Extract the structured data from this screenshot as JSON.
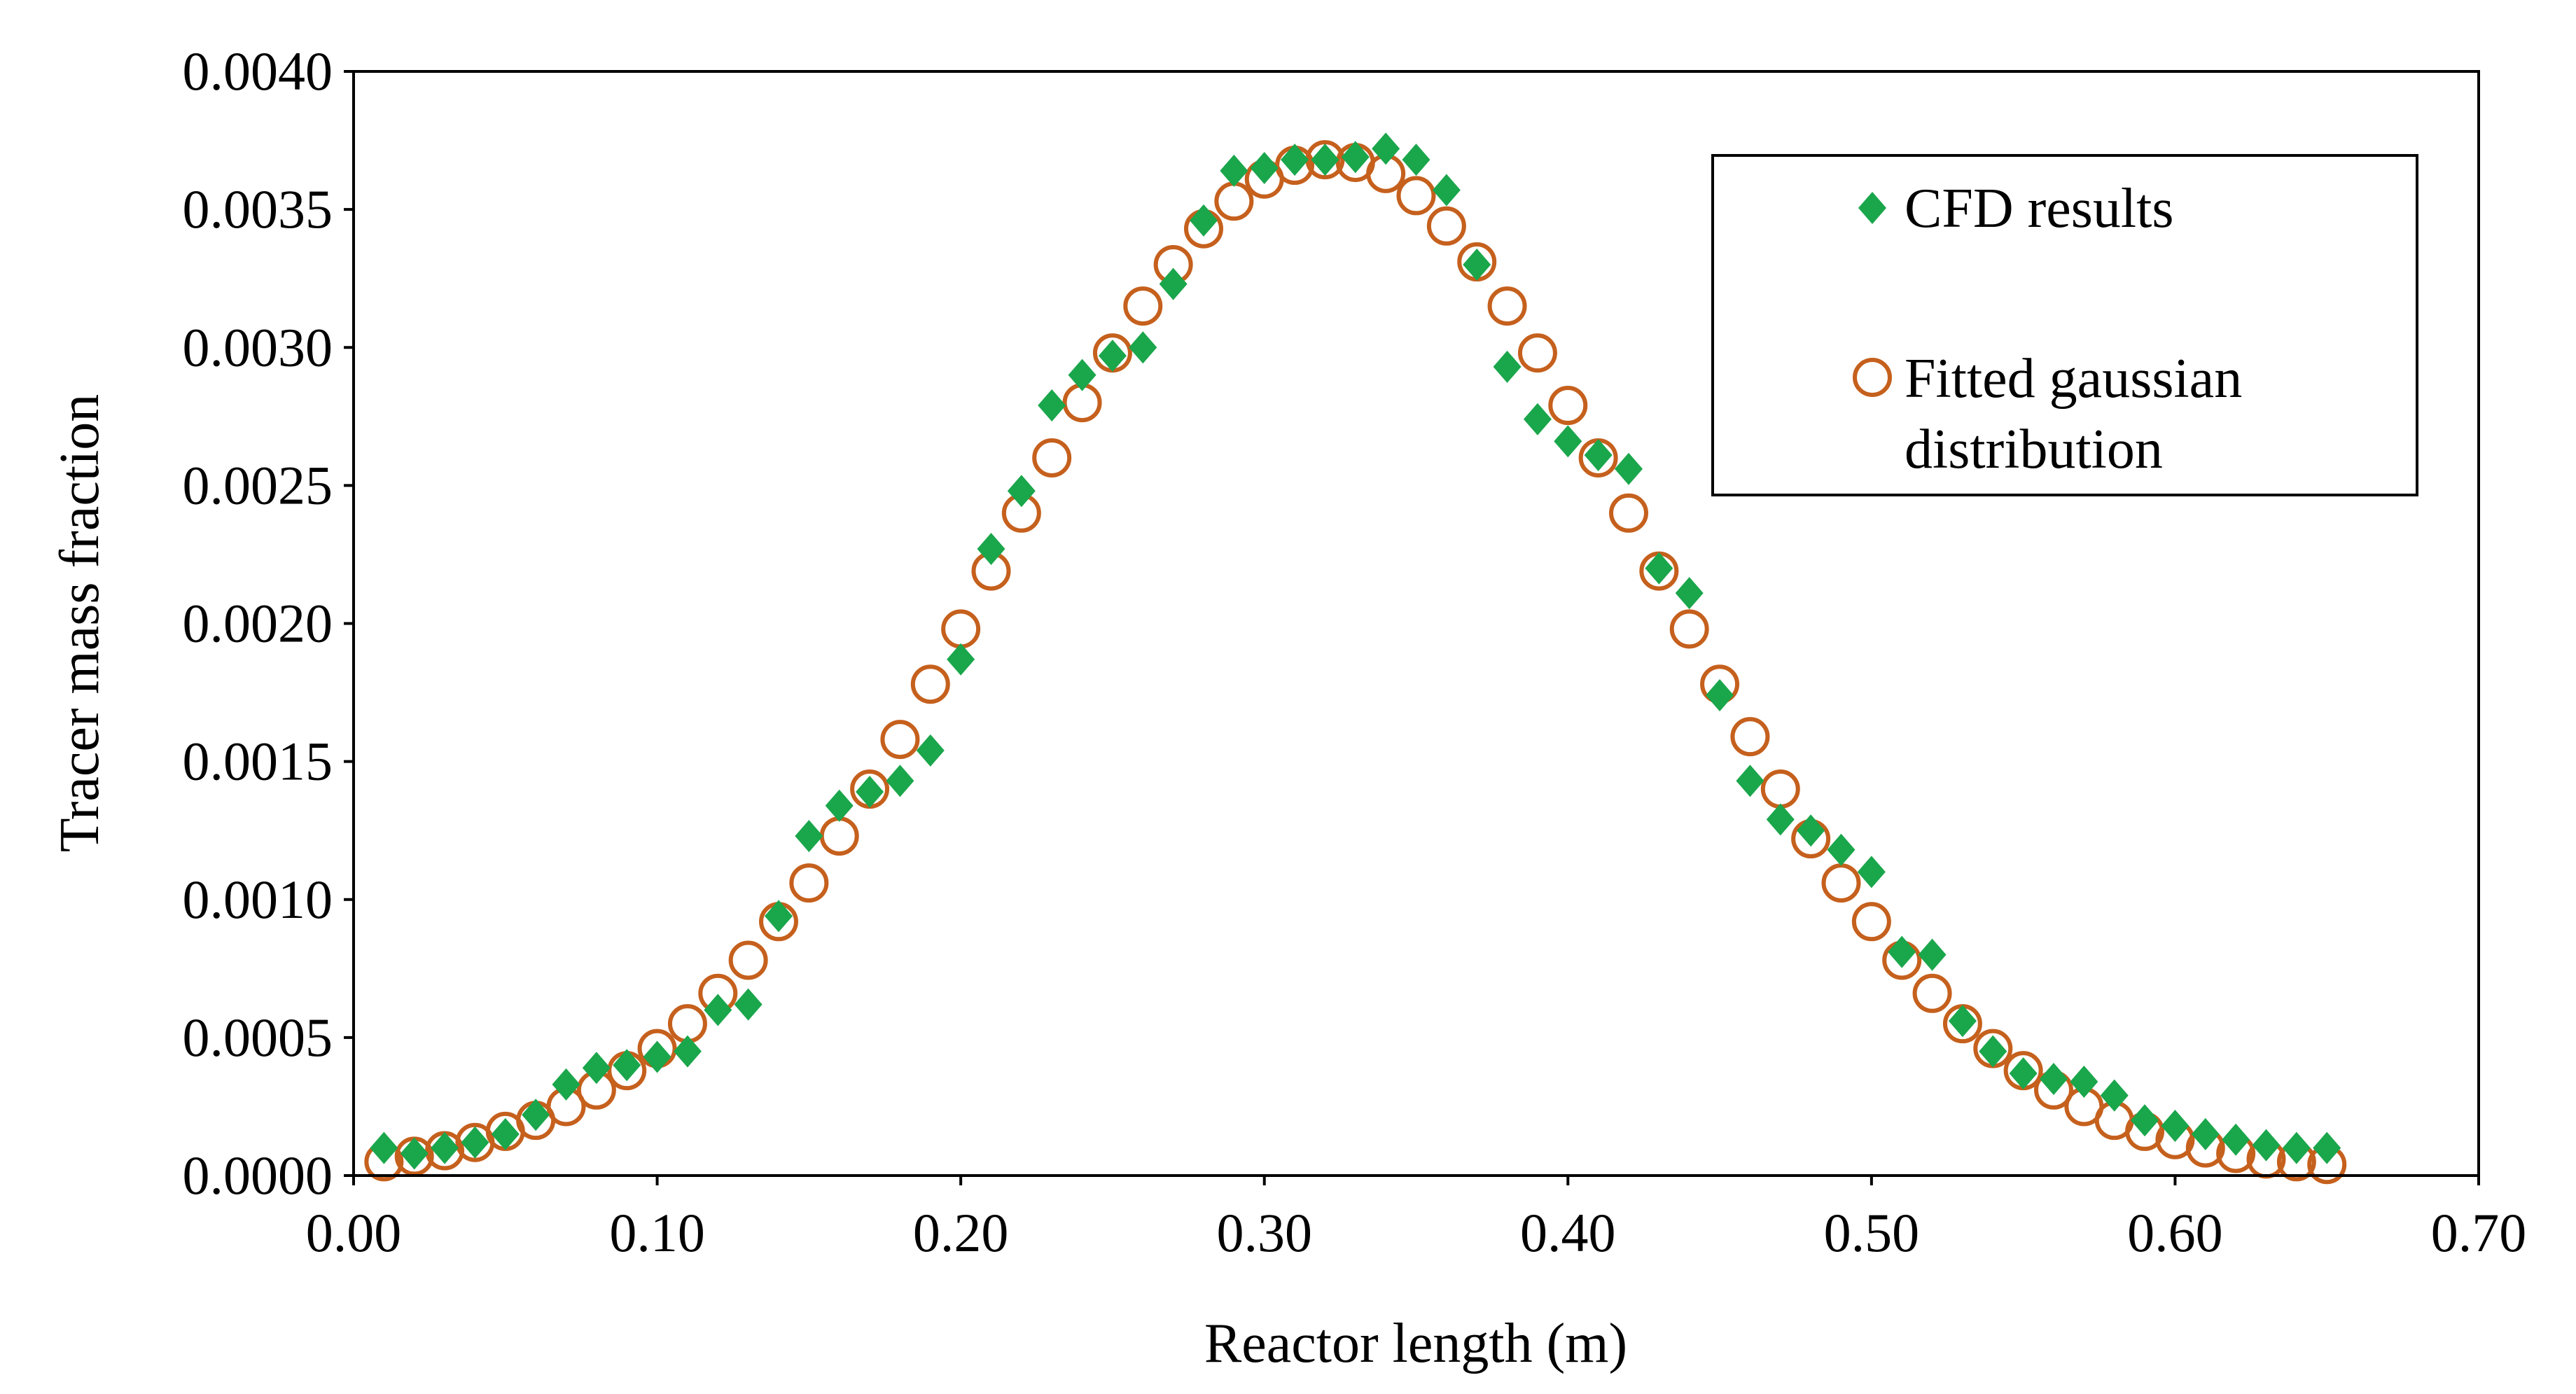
{
  "chart_data": {
    "type": "scatter",
    "title": "",
    "xlabel": "Reactor length (m)",
    "ylabel": "Tracer mass fraction",
    "xlim": [
      0.0,
      0.7
    ],
    "ylim": [
      0.0,
      0.004
    ],
    "x_ticks": [
      "0.00",
      "0.10",
      "0.20",
      "0.30",
      "0.40",
      "0.50",
      "0.60",
      "0.70"
    ],
    "y_ticks": [
      "0.0000",
      "0.0005",
      "0.0010",
      "0.0015",
      "0.0020",
      "0.0025",
      "0.0030",
      "0.0035",
      "0.0040"
    ],
    "grid": false,
    "legend_position": "top-right",
    "series": [
      {
        "name": "CFD results",
        "marker": "diamond",
        "color": "#1aa64b",
        "points": [
          [
            0.01,
            0.0001
          ],
          [
            0.02,
            8e-05
          ],
          [
            0.03,
            0.0001
          ],
          [
            0.04,
            0.00012
          ],
          [
            0.05,
            0.00015
          ],
          [
            0.06,
            0.00022
          ],
          [
            0.07,
            0.00033
          ],
          [
            0.08,
            0.00039
          ],
          [
            0.09,
            0.0004
          ],
          [
            0.1,
            0.00043
          ],
          [
            0.11,
            0.00045
          ],
          [
            0.12,
            0.0006
          ],
          [
            0.13,
            0.00062
          ],
          [
            0.14,
            0.00094
          ],
          [
            0.15,
            0.00123
          ],
          [
            0.16,
            0.00134
          ],
          [
            0.17,
            0.00139
          ],
          [
            0.18,
            0.00143
          ],
          [
            0.19,
            0.00154
          ],
          [
            0.2,
            0.00187
          ],
          [
            0.21,
            0.00227
          ],
          [
            0.22,
            0.00248
          ],
          [
            0.23,
            0.00279
          ],
          [
            0.24,
            0.0029
          ],
          [
            0.25,
            0.00297
          ],
          [
            0.26,
            0.003
          ],
          [
            0.27,
            0.00323
          ],
          [
            0.28,
            0.00346
          ],
          [
            0.29,
            0.00364
          ],
          [
            0.3,
            0.00365
          ],
          [
            0.31,
            0.00368
          ],
          [
            0.32,
            0.00368
          ],
          [
            0.33,
            0.00369
          ],
          [
            0.34,
            0.00372
          ],
          [
            0.35,
            0.00368
          ],
          [
            0.36,
            0.00357
          ],
          [
            0.37,
            0.0033
          ],
          [
            0.38,
            0.00293
          ],
          [
            0.39,
            0.00274
          ],
          [
            0.4,
            0.00266
          ],
          [
            0.41,
            0.00261
          ],
          [
            0.42,
            0.00256
          ],
          [
            0.43,
            0.0022
          ],
          [
            0.44,
            0.00211
          ],
          [
            0.45,
            0.00174
          ],
          [
            0.46,
            0.00143
          ],
          [
            0.47,
            0.00129
          ],
          [
            0.48,
            0.00125
          ],
          [
            0.49,
            0.00118
          ],
          [
            0.5,
            0.0011
          ],
          [
            0.51,
            0.00081
          ],
          [
            0.52,
            0.0008
          ],
          [
            0.53,
            0.00056
          ],
          [
            0.54,
            0.00045
          ],
          [
            0.55,
            0.00037
          ],
          [
            0.56,
            0.00035
          ],
          [
            0.57,
            0.00034
          ],
          [
            0.58,
            0.00029
          ],
          [
            0.59,
            0.0002
          ],
          [
            0.6,
            0.00018
          ],
          [
            0.61,
            0.00015
          ],
          [
            0.62,
            0.00013
          ],
          [
            0.63,
            0.00011
          ],
          [
            0.64,
            0.0001
          ],
          [
            0.65,
            0.0001
          ]
        ]
      },
      {
        "name": "Fitted gaussian distribution",
        "marker": "open-circle",
        "color": "#c5601d",
        "points": [
          [
            0.01,
            5e-05
          ],
          [
            0.02,
            7e-05
          ],
          [
            0.03,
            9e-05
          ],
          [
            0.04,
            0.00012
          ],
          [
            0.05,
            0.00016
          ],
          [
            0.06,
            0.0002
          ],
          [
            0.07,
            0.00025
          ],
          [
            0.08,
            0.00031
          ],
          [
            0.09,
            0.00038
          ],
          [
            0.1,
            0.00046
          ],
          [
            0.11,
            0.00055
          ],
          [
            0.12,
            0.00066
          ],
          [
            0.13,
            0.00078
          ],
          [
            0.14,
            0.00092
          ],
          [
            0.15,
            0.00106
          ],
          [
            0.16,
            0.00123
          ],
          [
            0.17,
            0.0014
          ],
          [
            0.18,
            0.00158
          ],
          [
            0.19,
            0.00178
          ],
          [
            0.2,
            0.00198
          ],
          [
            0.21,
            0.00219
          ],
          [
            0.22,
            0.0024
          ],
          [
            0.23,
            0.0026
          ],
          [
            0.24,
            0.0028
          ],
          [
            0.25,
            0.00298
          ],
          [
            0.26,
            0.00315
          ],
          [
            0.27,
            0.0033
          ],
          [
            0.28,
            0.00343
          ],
          [
            0.29,
            0.00353
          ],
          [
            0.3,
            0.00361
          ],
          [
            0.31,
            0.00366
          ],
          [
            0.32,
            0.00368
          ],
          [
            0.33,
            0.00367
          ],
          [
            0.34,
            0.00363
          ],
          [
            0.35,
            0.00355
          ],
          [
            0.36,
            0.00344
          ],
          [
            0.37,
            0.00331
          ],
          [
            0.38,
            0.00315
          ],
          [
            0.39,
            0.00298
          ],
          [
            0.4,
            0.00279
          ],
          [
            0.41,
            0.0026
          ],
          [
            0.42,
            0.0024
          ],
          [
            0.43,
            0.00219
          ],
          [
            0.44,
            0.00198
          ],
          [
            0.45,
            0.00178
          ],
          [
            0.46,
            0.00159
          ],
          [
            0.47,
            0.0014
          ],
          [
            0.48,
            0.00122
          ],
          [
            0.49,
            0.00106
          ],
          [
            0.5,
            0.00092
          ],
          [
            0.51,
            0.00078
          ],
          [
            0.52,
            0.00066
          ],
          [
            0.53,
            0.00055
          ],
          [
            0.54,
            0.00046
          ],
          [
            0.55,
            0.00038
          ],
          [
            0.56,
            0.00031
          ],
          [
            0.57,
            0.00025
          ],
          [
            0.58,
            0.0002
          ],
          [
            0.59,
            0.00016
          ],
          [
            0.6,
            0.00013
          ],
          [
            0.61,
            0.0001
          ],
          [
            0.62,
            8e-05
          ],
          [
            0.63,
            6e-05
          ],
          [
            0.64,
            5e-05
          ],
          [
            0.65,
            4e-05
          ]
        ]
      }
    ],
    "legend": {
      "line1": "CFD results",
      "line2a": "Fitted gaussian",
      "line2b": "distribution"
    }
  }
}
